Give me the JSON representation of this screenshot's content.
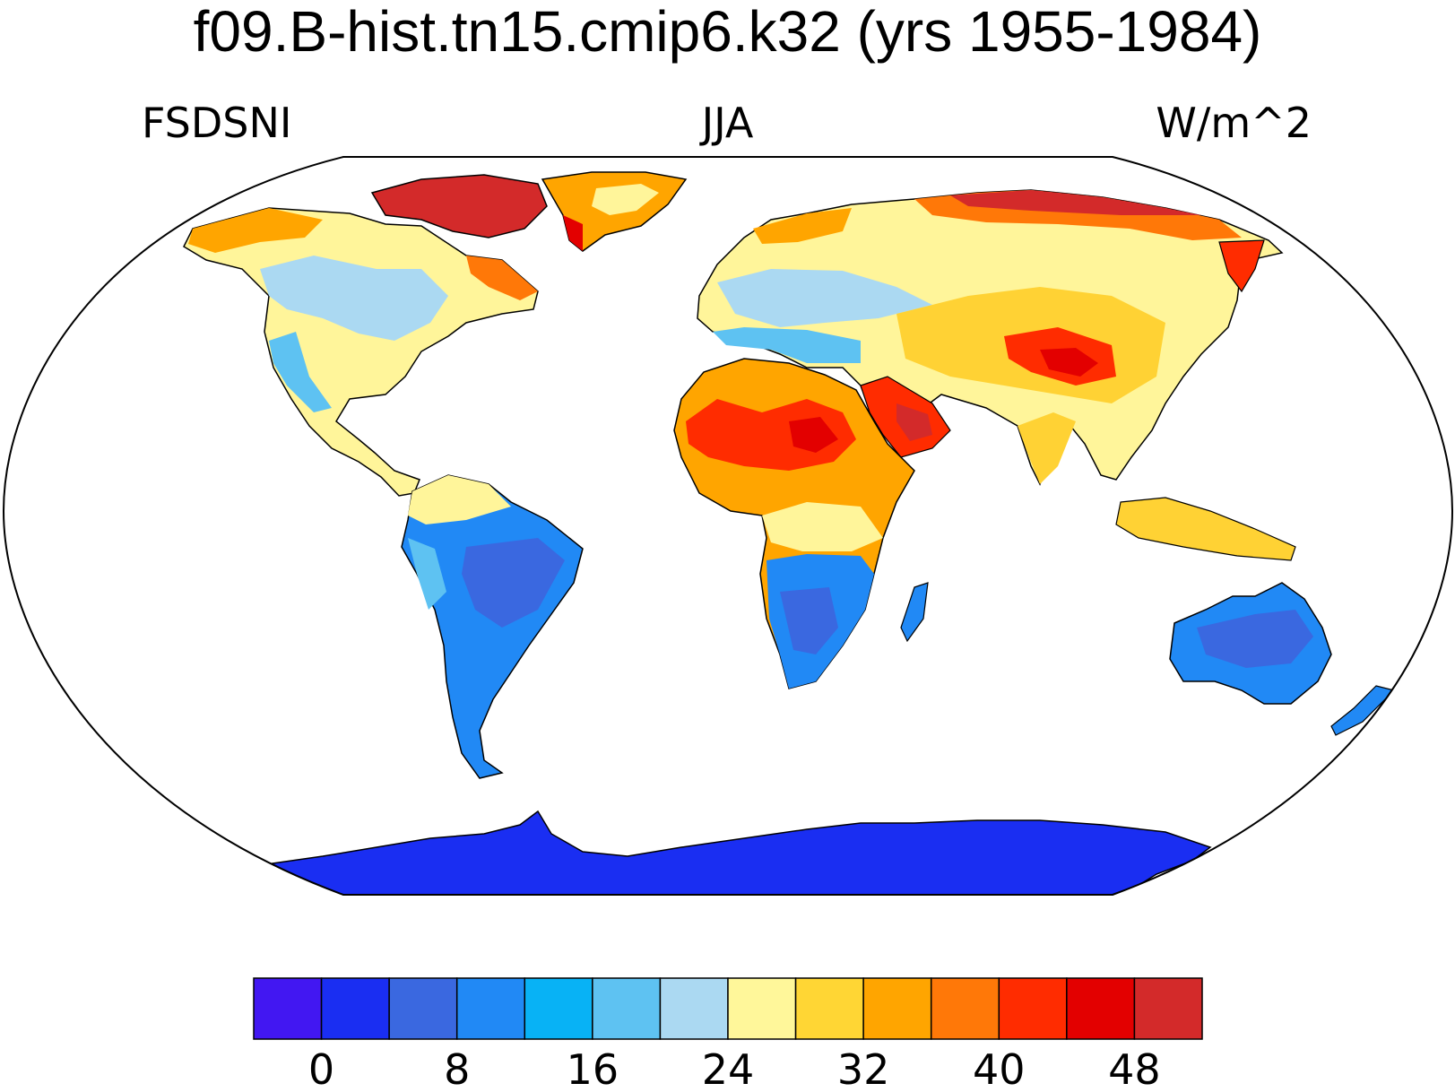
{
  "title": "f09.B-hist.tn15.cmip6.k32 (yrs 1955-1984)",
  "subtitle_left": "FSDSNI",
  "subtitle_center": "JJA",
  "subtitle_right": "W/m^2",
  "map": {
    "projection": "Robinson",
    "coastlines": true,
    "land_colors": {
      "antarctica": "#1a2ef2",
      "southern_continents": "#2b86f5",
      "tropics": "#fff59a",
      "deserts": "#f23a1a",
      "arctic_land": "#d12a2a",
      "boreal": "#ffd23a"
    }
  },
  "colorbar": {
    "colors": [
      "#4217f2",
      "#1a2ef2",
      "#3a68e0",
      "#2189f5",
      "#08b2f5",
      "#5ec2f2",
      "#abd9f2",
      "#fff79a",
      "#ffd634",
      "#ffa500",
      "#ff7808",
      "#ff2c00",
      "#e30000",
      "#d32a2a"
    ],
    "ticks": [
      "0",
      "8",
      "16",
      "24",
      "32",
      "40",
      "48"
    ],
    "tick_values": [
      0,
      8,
      16,
      24,
      32,
      40,
      48
    ],
    "level_min": -4,
    "level_step": 4
  }
}
